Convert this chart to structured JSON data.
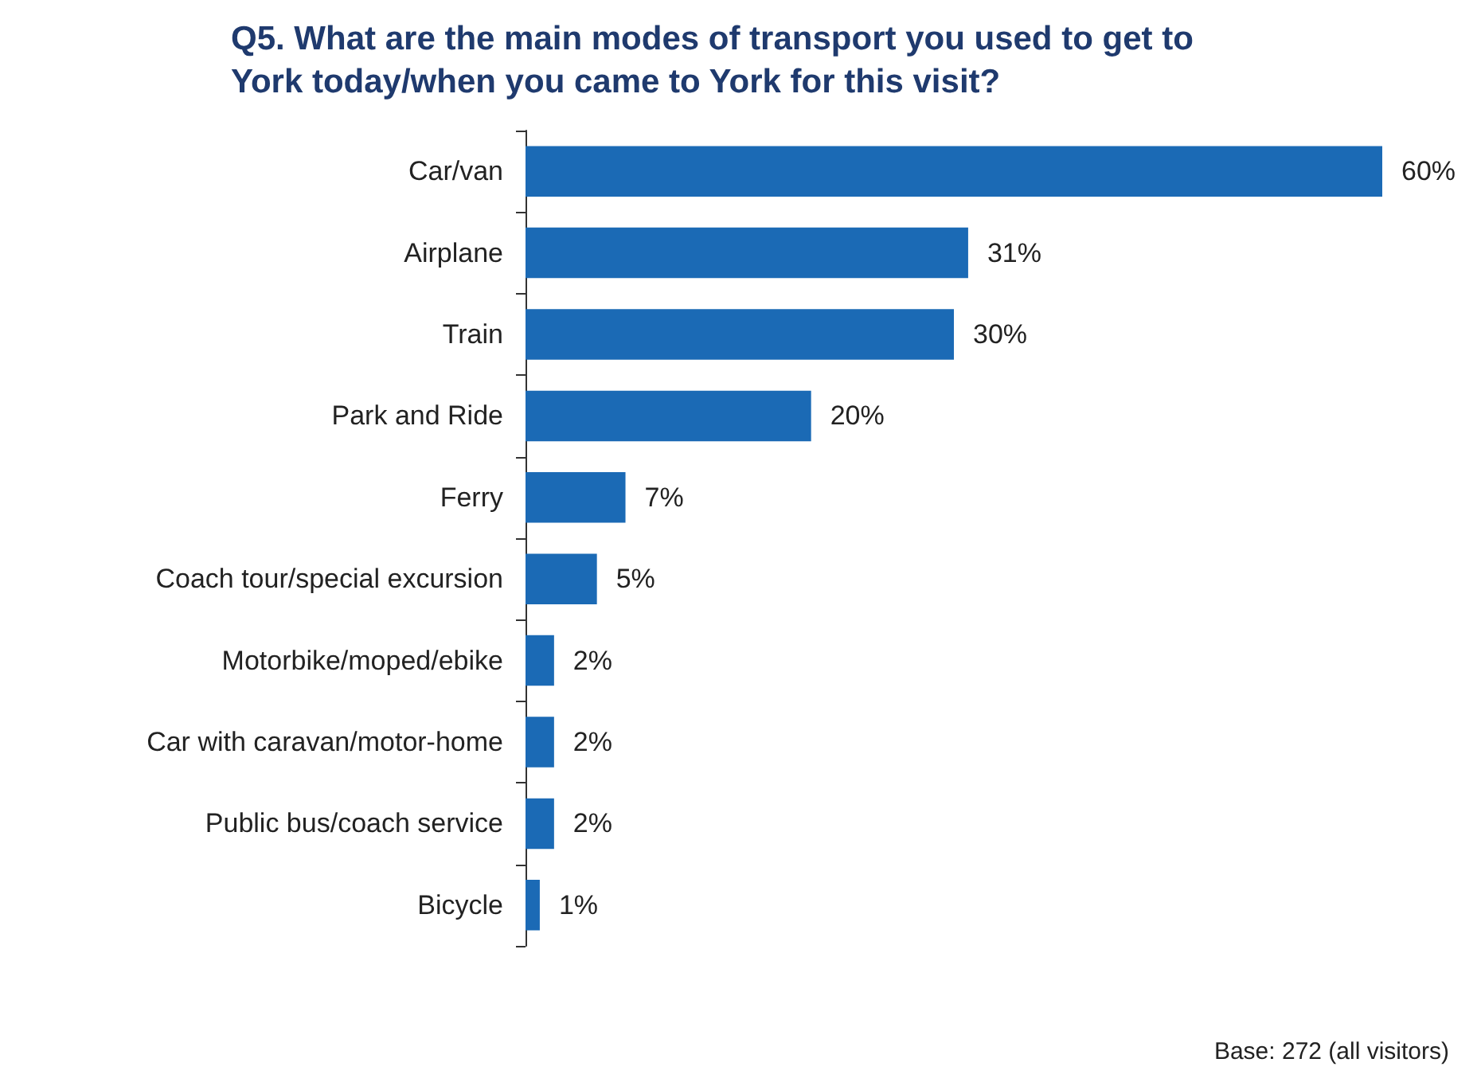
{
  "chart_data": {
    "type": "bar",
    "orientation": "horizontal",
    "title": "Q5. What are the main modes of transport you used to get to York today/when you came to York for this visit?",
    "categories": [
      "Car/van",
      "Airplane",
      "Train",
      "Park and Ride",
      "Ferry",
      "Coach tour/special excursion",
      "Motorbike/moped/ebike",
      "Car with caravan/motor-home",
      "Public bus/coach service",
      "Bicycle"
    ],
    "values": [
      60,
      31,
      30,
      20,
      7,
      5,
      2,
      2,
      2,
      1
    ],
    "value_labels": [
      "60%",
      "31%",
      "30%",
      "20%",
      "7%",
      "5%",
      "2%",
      "2%",
      "2%",
      "1%"
    ],
    "color": "#1b6ab5",
    "grid": false,
    "annotations": [
      "Base: 272 (all visitors)"
    ]
  }
}
